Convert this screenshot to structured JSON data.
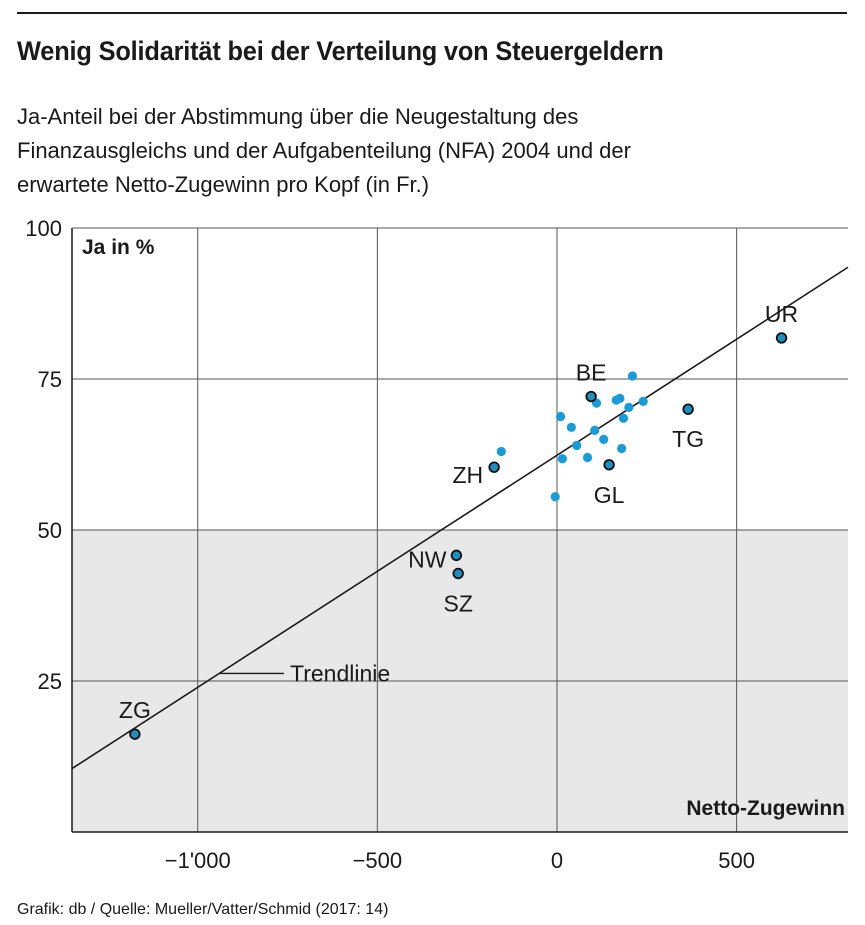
{
  "header": {
    "title": "Wenig Solidarität bei der Verteilung von Steuergeldern",
    "subtitle_lines": [
      "Ja-Anteil bei der Abstimmung über die Neugestaltung des",
      "Finanzausgleichs und der Aufgabenteilung (NFA) 2004 und der",
      "erwartete Netto-Zugewinn pro Kopf (in Fr.)"
    ]
  },
  "footer": {
    "source": "Grafik: db / Quelle: Mueller/Vatter/Schmid (2017: 14)"
  },
  "colors": {
    "labeled_point": "#1f8fc2",
    "unlabeled_point": "#1a9bd7",
    "shade": "#e8e8e8",
    "grid": "#555555",
    "text": "#1a1a1a"
  },
  "chart_data": {
    "type": "scatter",
    "ylabel": "Ja in %",
    "xlabel": "Netto-Zugewinn",
    "xlim": [
      -1350,
      810
    ],
    "ylim": [
      0,
      100
    ],
    "x_ticks": [
      {
        "value": -1000,
        "label": "−1'000"
      },
      {
        "value": -500,
        "label": "−500"
      },
      {
        "value": 0,
        "label": "0"
      },
      {
        "value": 500,
        "label": "500"
      }
    ],
    "y_ticks": [
      {
        "value": 25,
        "label": "25"
      },
      {
        "value": 50,
        "label": "50"
      },
      {
        "value": 75,
        "label": "75"
      },
      {
        "value": 100,
        "label": "100"
      }
    ],
    "grid": true,
    "shaded_region": {
      "y_from": 0,
      "y_to": 50
    },
    "trendline": {
      "label": "Trendlinie",
      "x": [
        -1350,
        810
      ],
      "y": [
        10.5,
        93.5
      ]
    },
    "labeled_points": [
      {
        "label": "UR",
        "x": 625,
        "y": 81.8
      },
      {
        "label": "BE",
        "x": 95,
        "y": 72.1
      },
      {
        "label": "TG",
        "x": 365,
        "y": 70.0
      },
      {
        "label": "ZH",
        "x": -175,
        "y": 60.4
      },
      {
        "label": "GL",
        "x": 145,
        "y": 60.8
      },
      {
        "label": "NW",
        "x": -280,
        "y": 45.8
      },
      {
        "label": "SZ",
        "x": -275,
        "y": 42.8
      },
      {
        "label": "ZG",
        "x": -1175,
        "y": 16.2
      }
    ],
    "points": [
      {
        "x": -155,
        "y": 63.0
      },
      {
        "x": 10,
        "y": 68.8
      },
      {
        "x": 15,
        "y": 61.8
      },
      {
        "x": -5,
        "y": 55.5
      },
      {
        "x": 40,
        "y": 67.0
      },
      {
        "x": 55,
        "y": 64.0
      },
      {
        "x": 85,
        "y": 62.0
      },
      {
        "x": 105,
        "y": 66.5
      },
      {
        "x": 110,
        "y": 71.0
      },
      {
        "x": 130,
        "y": 65.0
      },
      {
        "x": 165,
        "y": 71.5
      },
      {
        "x": 175,
        "y": 71.8
      },
      {
        "x": 180,
        "y": 63.5
      },
      {
        "x": 185,
        "y": 68.5
      },
      {
        "x": 200,
        "y": 70.3
      },
      {
        "x": 210,
        "y": 75.5
      },
      {
        "x": 240,
        "y": 71.3
      }
    ]
  }
}
